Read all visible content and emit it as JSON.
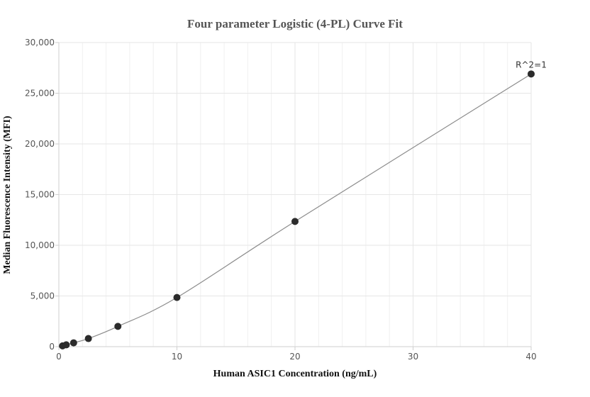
{
  "chart_data": {
    "type": "scatter",
    "title": "Four parameter Logistic (4-PL) Curve Fit",
    "xlabel": "Human ASIC1 Concentration (ng/mL)",
    "ylabel": "Median Fluorescence Intensity (MFI)",
    "xlim": [
      0,
      40
    ],
    "ylim": [
      0,
      30000
    ],
    "x_ticks": [
      0,
      10,
      20,
      30,
      40
    ],
    "x_tick_labels": [
      "0",
      "10",
      "20",
      "30",
      "40"
    ],
    "y_ticks": [
      0,
      5000,
      10000,
      15000,
      20000,
      25000,
      30000
    ],
    "y_tick_labels": [
      "0",
      "5,000",
      "10,000",
      "15,000",
      "20,000",
      "25,000",
      "30,000"
    ],
    "grid": true,
    "series": [
      {
        "points": [
          {
            "x": 0.3125,
            "y": 80
          },
          {
            "x": 0.625,
            "y": 180
          },
          {
            "x": 1.25,
            "y": 380
          },
          {
            "x": 2.5,
            "y": 800
          },
          {
            "x": 5,
            "y": 2000
          },
          {
            "x": 10,
            "y": 4850
          },
          {
            "x": 20,
            "y": 12350
          },
          {
            "x": 40,
            "y": 26900
          }
        ]
      }
    ],
    "annotations": [
      {
        "text": "R^2=1",
        "x": 40,
        "y": 26900
      }
    ],
    "colors": {
      "points": "#2b2b2b",
      "curve": "#8c8c8c",
      "grid": "#e6e6e6",
      "axis": "#cfcfcf"
    }
  }
}
